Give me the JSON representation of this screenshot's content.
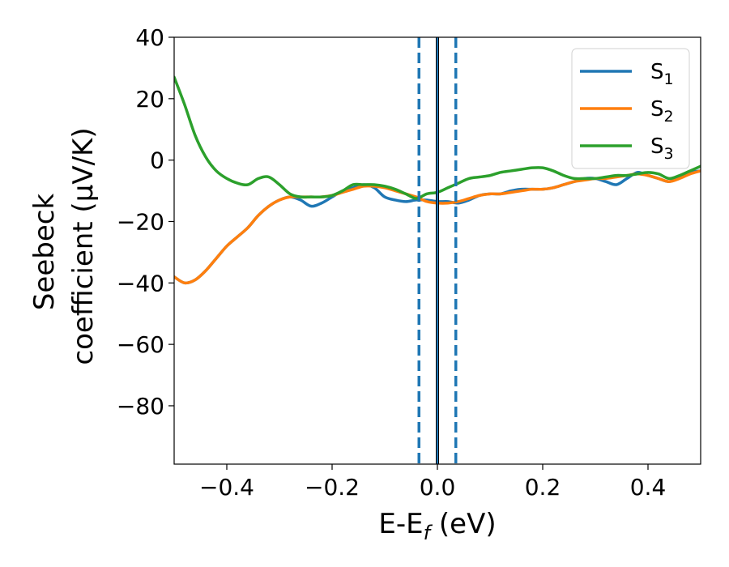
{
  "chart_data": {
    "type": "line",
    "xlabel": "E-E",
    "xlabel_sub": "f",
    "xlabel_unit": " (eV)",
    "ylabel_line1": "Seebeck",
    "ylabel_line2": "coefficient  (μV/K)",
    "xlim": [
      -0.5,
      0.5
    ],
    "ylim": [
      -99,
      40
    ],
    "xticks": [
      -0.4,
      -0.2,
      0.0,
      0.2,
      0.4
    ],
    "xtick_labels": [
      "−0.4",
      "−0.2",
      "0.0",
      "0.2",
      "0.4"
    ],
    "yticks": [
      40,
      20,
      0,
      -20,
      -40,
      -60,
      -80
    ],
    "ytick_labels": [
      "40",
      "20",
      "0",
      "−20",
      "−40",
      "−60",
      "−80"
    ],
    "grid": false,
    "legend_position": "top-right",
    "vertical_lines": [
      {
        "x": -0.035,
        "style": "dashed",
        "color": "#1f77b4"
      },
      {
        "x": 0.035,
        "style": "dashed",
        "color": "#1f77b4"
      },
      {
        "x": 0.0,
        "style": "solid",
        "color": "#000000"
      },
      {
        "x": 0.0,
        "style": "solid",
        "color": "#1f77b4"
      }
    ],
    "series": [
      {
        "name": "S",
        "sub": "1",
        "color": "#1f77b4",
        "x": [
          -0.5,
          -0.48,
          -0.46,
          -0.44,
          -0.42,
          -0.4,
          -0.38,
          -0.36,
          -0.34,
          -0.32,
          -0.3,
          -0.28,
          -0.26,
          -0.24,
          -0.22,
          -0.2,
          -0.18,
          -0.16,
          -0.14,
          -0.12,
          -0.1,
          -0.08,
          -0.06,
          -0.04,
          -0.02,
          0.0,
          0.02,
          0.04,
          0.06,
          0.08,
          0.1,
          0.12,
          0.14,
          0.16,
          0.18,
          0.2,
          0.22,
          0.24,
          0.26,
          0.28,
          0.3,
          0.32,
          0.34,
          0.36,
          0.38,
          0.4,
          0.42,
          0.44,
          0.46,
          0.48,
          0.5
        ],
        "y": [
          -38,
          -40,
          -39,
          -36,
          -32,
          -28,
          -25,
          -22,
          -18,
          -15,
          -13,
          -12,
          -13,
          -15,
          -14,
          -12,
          -10,
          -9,
          -8,
          -9,
          -12,
          -13,
          -13.5,
          -13,
          -13,
          -13.5,
          -13.5,
          -14,
          -13,
          -11.5,
          -11,
          -11,
          -10,
          -9.5,
          -9.5,
          -9.5,
          -9,
          -8,
          -7,
          -6,
          -6,
          -7,
          -8,
          -6,
          -4,
          -5,
          -6,
          -7,
          -5.5,
          -4,
          -3.5
        ]
      },
      {
        "name": "S",
        "sub": "2",
        "color": "#ff7f0e",
        "x": [
          -0.5,
          -0.48,
          -0.46,
          -0.44,
          -0.42,
          -0.4,
          -0.38,
          -0.36,
          -0.34,
          -0.32,
          -0.3,
          -0.28,
          -0.26,
          -0.24,
          -0.22,
          -0.2,
          -0.18,
          -0.16,
          -0.14,
          -0.12,
          -0.1,
          -0.08,
          -0.06,
          -0.04,
          -0.02,
          0.0,
          0.02,
          0.04,
          0.06,
          0.08,
          0.1,
          0.12,
          0.14,
          0.16,
          0.18,
          0.2,
          0.22,
          0.24,
          0.26,
          0.28,
          0.3,
          0.32,
          0.34,
          0.36,
          0.38,
          0.4,
          0.42,
          0.44,
          0.46,
          0.48,
          0.5
        ],
        "y": [
          -38,
          -40,
          -39,
          -36,
          -32,
          -28,
          -25,
          -22,
          -18,
          -15,
          -13,
          -12,
          -12,
          -12,
          -12,
          -11.5,
          -10.5,
          -9.5,
          -8.5,
          -8.5,
          -9,
          -10,
          -11,
          -12,
          -13.5,
          -14,
          -14,
          -13.5,
          -12.5,
          -11.5,
          -11,
          -11,
          -10.5,
          -10,
          -9.5,
          -9.5,
          -9,
          -8,
          -7,
          -6.5,
          -6,
          -6,
          -5.5,
          -5,
          -4.5,
          -5,
          -6,
          -7,
          -6,
          -4.5,
          -3.5
        ]
      },
      {
        "name": "S",
        "sub": "3",
        "color": "#2ca02c",
        "x": [
          -0.5,
          -0.48,
          -0.46,
          -0.44,
          -0.42,
          -0.4,
          -0.38,
          -0.36,
          -0.34,
          -0.32,
          -0.3,
          -0.28,
          -0.26,
          -0.24,
          -0.22,
          -0.2,
          -0.18,
          -0.16,
          -0.14,
          -0.12,
          -0.1,
          -0.08,
          -0.06,
          -0.04,
          -0.02,
          0.0,
          0.02,
          0.04,
          0.06,
          0.08,
          0.1,
          0.12,
          0.14,
          0.16,
          0.18,
          0.2,
          0.22,
          0.24,
          0.26,
          0.28,
          0.3,
          0.32,
          0.34,
          0.36,
          0.38,
          0.4,
          0.42,
          0.44,
          0.46,
          0.48,
          0.5
        ],
        "y": [
          27,
          18,
          8,
          1,
          -3.5,
          -6,
          -7.5,
          -8,
          -6,
          -5.5,
          -8,
          -11,
          -12,
          -12,
          -12,
          -11.5,
          -10,
          -8,
          -8,
          -8,
          -8.5,
          -9.5,
          -11,
          -12.5,
          -11,
          -10.5,
          -9,
          -7.5,
          -6,
          -5.5,
          -5,
          -4,
          -3.5,
          -3,
          -2.5,
          -2.5,
          -3.5,
          -5,
          -6,
          -6,
          -6,
          -5.5,
          -5,
          -5,
          -4.5,
          -4,
          -4.5,
          -6,
          -5,
          -3.5,
          -2
        ]
      }
    ]
  }
}
